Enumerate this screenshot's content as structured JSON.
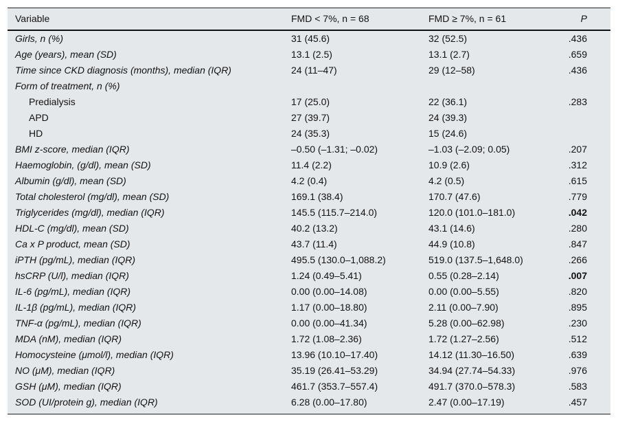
{
  "header": {
    "variable": "Variable",
    "group1": "FMD < 7%, n = 68",
    "group2": "FMD ≥ 7%, n = 61",
    "p": "P"
  },
  "rows": [
    {
      "label": "Girls, n (%)",
      "g1": "31 (45.6)",
      "g2": "32 (52.5)",
      "p": ".436"
    },
    {
      "label": "Age (years), mean (SD)",
      "g1": "13.1 (2.5)",
      "g2": "13.1 (2.7)",
      "p": ".659"
    },
    {
      "label": "Time since CKD diagnosis (months), median (IQR)",
      "g1": "24 (11–47)",
      "g2": "29 (12–58)",
      "p": ".436"
    },
    {
      "label": "Form of treatment, n (%)",
      "g1": "",
      "g2": "",
      "p": ""
    },
    {
      "label": "Predialysis",
      "sub": true,
      "g1": "17 (25.0)",
      "g2": "22 (36.1)",
      "p": ".283"
    },
    {
      "label": "APD",
      "sub": true,
      "g1": "27 (39.7)",
      "g2": "24 (39.3)",
      "p": ""
    },
    {
      "label": "HD",
      "sub": true,
      "g1": "24 (35.3)",
      "g2": "15 (24.6)",
      "p": ""
    },
    {
      "label": "BMI z-score, median (IQR)",
      "g1": "–0.50 (–1.31; –0.02)",
      "g2": "–1.03 (–2.09; 0.05)",
      "p": ".207"
    },
    {
      "label": "Haemoglobin, (g/dl), mean (SD)",
      "g1": "11.4 (2.2)",
      "g2": "10.9 (2.6)",
      "p": ".312"
    },
    {
      "label": "Albumin (g/dl), mean (SD)",
      "g1": "4.2 (0.4)",
      "g2": "4.2 (0.5)",
      "p": ".615"
    },
    {
      "label": "Total cholesterol (mg/dl), mean (SD)",
      "g1": "169.1 (38.4)",
      "g2": "170.7 (47.6)",
      "p": ".779"
    },
    {
      "label": "Triglycerides (mg/dl), median (IQR)",
      "g1": "145.5 (115.7–214.0)",
      "g2": "120.0 (101.0–181.0)",
      "p": ".042",
      "bold": true
    },
    {
      "label": "HDL-C (mg/dl), mean (SD)",
      "g1": "40.2 (13.2)",
      "g2": "43.1 (14.6)",
      "p": ".280"
    },
    {
      "label": "Ca x P product, mean (SD)",
      "g1": "43.7 (11.4)",
      "g2": "44.9 (10.8)",
      "p": ".847"
    },
    {
      "label": "iPTH (pg/mL), median (IQR)",
      "g1": "495.5 (130.0–1,088.2)",
      "g2": "519.0 (137.5–1,648.0)",
      "p": ".266"
    },
    {
      "label": "hsCRP (U/l), median (IQR)",
      "g1": "1.24 (0.49–5.41)",
      "g2": "0.55 (0.28–2.14)",
      "p": ".007",
      "bold": true
    },
    {
      "label": "IL-6 (pg/mL), median (IQR)",
      "g1": "0.00 (0.00–14.08)",
      "g2": "0.00 (0.00–5.55)",
      "p": ".820"
    },
    {
      "label": "IL-1β (pg/mL), median (IQR)",
      "g1": "1.17 (0.00–18.80)",
      "g2": "2.11 (0.00–7.90)",
      "p": ".895"
    },
    {
      "label": "TNF-α (pg/mL), median (IQR)",
      "g1": "0.00 (0.00–41.34)",
      "g2": "5.28 (0.00–62.98)",
      "p": ".230"
    },
    {
      "label": "MDA (nM), median (IQR)",
      "g1": "1.72 (1.08–2.36)",
      "g2": "1.72 (1.27–2.56)",
      "p": ".512"
    },
    {
      "label": "Homocysteine (μmol/l), median (IQR)",
      "g1": "13.96 (10.10–17.40)",
      "g2": "14.12 (11.30–16.50)",
      "p": ".639"
    },
    {
      "label": "NO (μM), median (IQR)",
      "g1": "35.19 (26.41–53.29)",
      "g2": "34.94 (27.74–54.33)",
      "p": ".976"
    },
    {
      "label": "GSH (μM), median (IQR)",
      "g1": "461.7 (353.7–557.4)",
      "g2": "491.7 (370.0–578.3)",
      "p": ".583"
    },
    {
      "label": "SOD (UI/protein g), median (IQR)",
      "g1": "6.28 (0.00–17.80)",
      "g2": "2.47 (0.00–17.19)",
      "p": ".457"
    }
  ]
}
